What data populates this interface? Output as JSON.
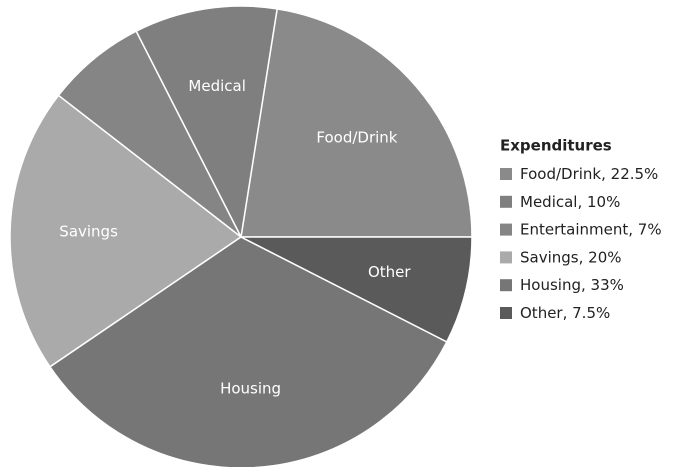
{
  "chart_data": {
    "type": "pie",
    "categories": [
      "Food/Drink",
      "Medical",
      "Entertainment",
      "Savings",
      "Housing",
      "Other"
    ],
    "values": [
      22.5,
      10,
      7,
      20,
      33,
      7.5
    ],
    "value_labels": [
      "22.5%",
      "10%",
      "7%",
      "20%",
      "33%",
      "7.5%"
    ],
    "slice_labels": [
      "Food/Drink",
      "Medical",
      null,
      "Savings",
      "Housing",
      "Other"
    ],
    "colors": [
      "#8a8a8a",
      "#7f7f7f",
      "#858585",
      "#aaaaaa",
      "#767676",
      "#5a5a5a"
    ],
    "legend": {
      "title": "Expenditures",
      "position": "right"
    }
  }
}
